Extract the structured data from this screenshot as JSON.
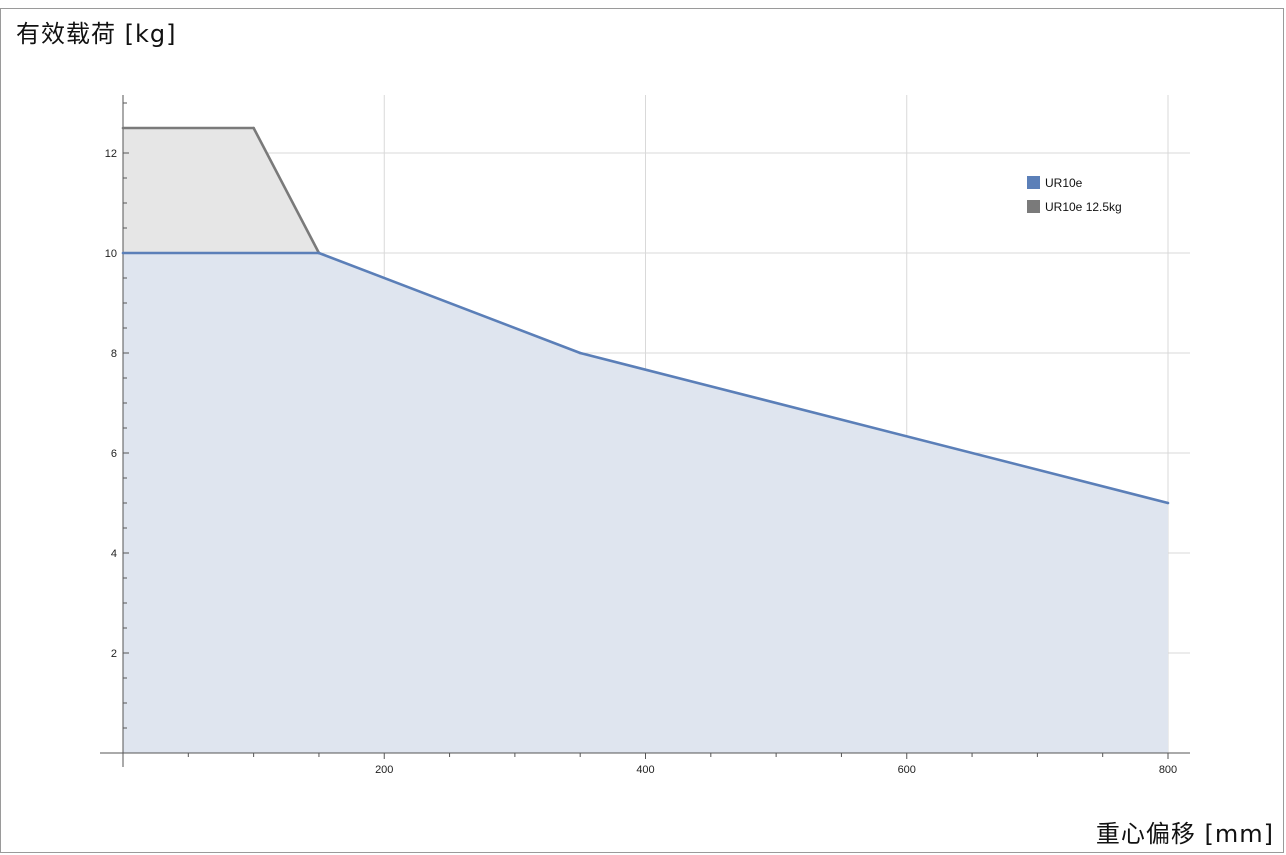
{
  "chart_data": {
    "type": "area",
    "xlabel": "重心偏移 [mm]",
    "ylabel": "有效载荷 [kg]",
    "xlim": [
      0,
      820
    ],
    "ylim": [
      0,
      13.2
    ],
    "x_ticks": [
      200,
      400,
      600,
      800
    ],
    "y_ticks": [
      2,
      4,
      6,
      8,
      10,
      12
    ],
    "grid": true,
    "legend_position": "top-right",
    "series": [
      {
        "name": "UR10e",
        "color": "#5b7fb8",
        "fill": "#dfe5ef",
        "points": [
          [
            0,
            10
          ],
          [
            150,
            10
          ],
          [
            350,
            8
          ],
          [
            800,
            5
          ]
        ]
      },
      {
        "name": "UR10e 12.5kg",
        "color": "#7a7a7a",
        "fill": "#e6e6e6",
        "points": [
          [
            0,
            12.5
          ],
          [
            100,
            12.5
          ],
          [
            150,
            10
          ]
        ]
      }
    ]
  }
}
